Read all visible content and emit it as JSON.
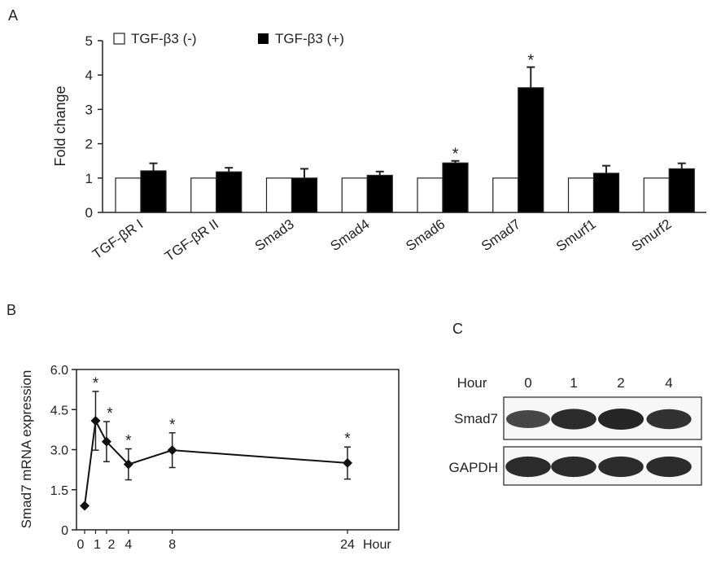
{
  "panels": {
    "a": {
      "letter": "A"
    },
    "b": {
      "letter": "B"
    },
    "c": {
      "letter": "C"
    }
  },
  "chart_data": [
    {
      "type": "bar",
      "panel": "A",
      "ylabel": "Fold change",
      "ylim": [
        0,
        5
      ],
      "yticks": [
        "0",
        "1",
        "2",
        "3",
        "4",
        "5"
      ],
      "categories": [
        "TGF-βR I",
        "TGF-βR II",
        "Smad3",
        "Smad4",
        "Smad6",
        "Smad7",
        "Smurf1",
        "Smurf2"
      ],
      "series": [
        {
          "name": "TGF-β3 (-)",
          "color": "#ffffff",
          "values": [
            1,
            1,
            1,
            1,
            1,
            1,
            1,
            1
          ],
          "errors": [
            0,
            0,
            0,
            0,
            0,
            0,
            0,
            0
          ]
        },
        {
          "name": "TGF-β3 (+)",
          "color": "#000000",
          "values": [
            1.21,
            1.18,
            1.0,
            1.08,
            1.44,
            3.63,
            1.14,
            1.27
          ],
          "errors": [
            0.22,
            0.12,
            0.27,
            0.11,
            0.06,
            0.6,
            0.22,
            0.16
          ]
        }
      ],
      "annotations": [
        {
          "category": "Smad6",
          "text": "*"
        },
        {
          "category": "Smad7",
          "text": "*"
        }
      ],
      "legend": "top-left",
      "grid": false
    },
    {
      "type": "line",
      "panel": "B",
      "ylabel": "Smad7 mRNA expression",
      "xlabel": "Hour",
      "ylim": [
        0,
        6
      ],
      "yticks": [
        "0",
        "1.5",
        "3.0",
        "4.5",
        "6.0"
      ],
      "xticks": [
        "0",
        "1",
        "2",
        "4",
        "8",
        "24"
      ],
      "x": [
        0,
        1,
        2,
        4,
        8,
        24
      ],
      "y": [
        0.9,
        4.08,
        3.3,
        2.45,
        2.98,
        2.5
      ],
      "errors": [
        0,
        1.1,
        0.75,
        0.58,
        0.65,
        0.6
      ],
      "significant": [
        false,
        true,
        true,
        true,
        true,
        true
      ],
      "star": "*",
      "grid": false
    }
  ],
  "blot": {
    "panel": "C",
    "header_label": "Hour",
    "lanes": [
      "0",
      "1",
      "2",
      "4"
    ],
    "rows": [
      {
        "label": "Smad7",
        "intensity": [
          0.75,
          0.95,
          1.0,
          0.9
        ]
      },
      {
        "label": "GAPDH",
        "intensity": [
          0.95,
          0.95,
          0.95,
          0.95
        ]
      }
    ]
  }
}
